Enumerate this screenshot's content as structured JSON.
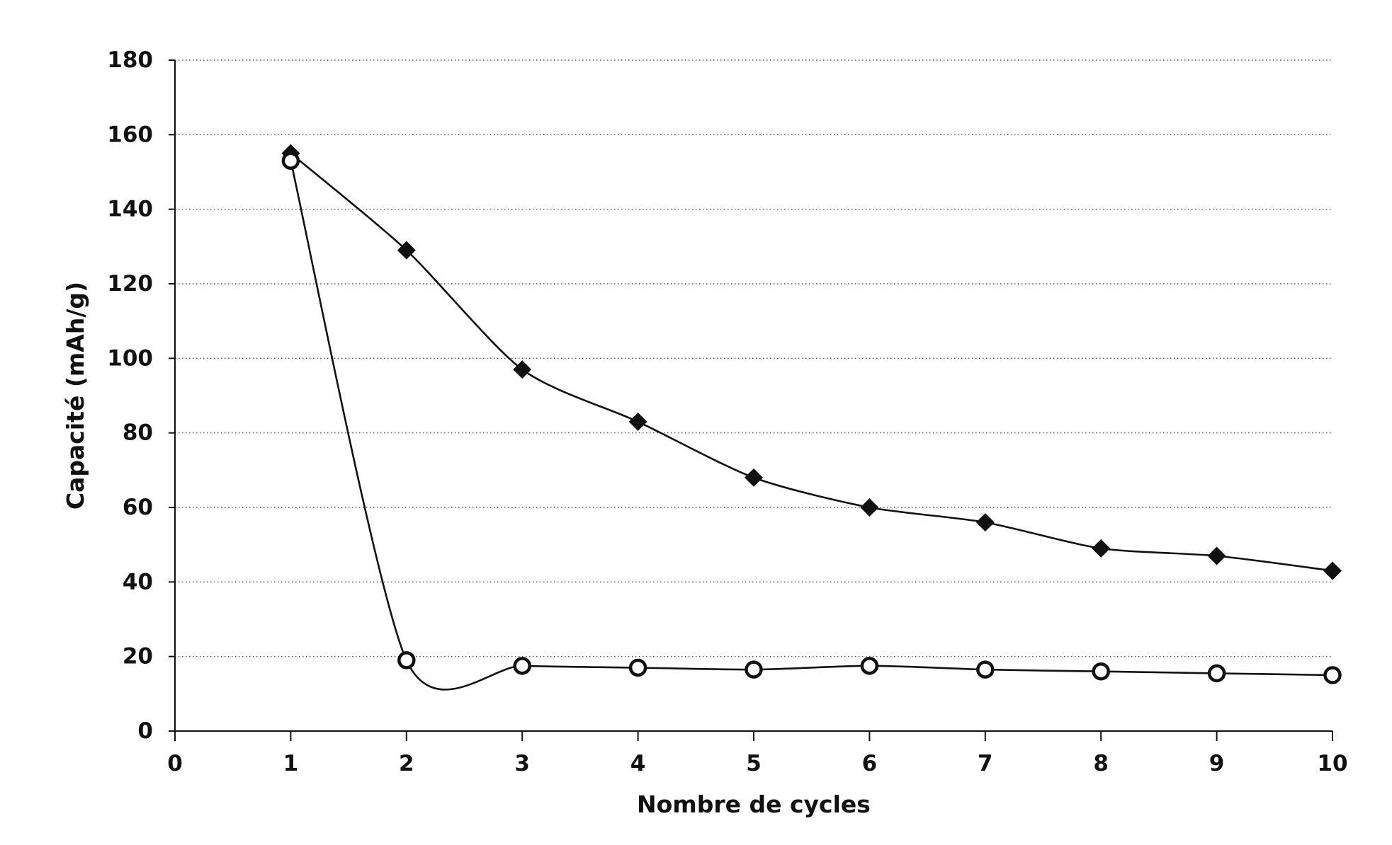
{
  "chart": {
    "background_color": "#ffffff",
    "ink_color": "#111111",
    "gridline_color": "#555555"
  },
  "chart_data": {
    "type": "line",
    "title": "",
    "xlabel": "Nombre de cycles",
    "ylabel": "Capacité (mAh/g)",
    "x": [
      1,
      2,
      3,
      4,
      5,
      6,
      7,
      8,
      9,
      10
    ],
    "series": [
      {
        "name": "serie-losanges-pleins",
        "marker": "filled-diamond",
        "color": "#111111",
        "values": [
          155,
          129,
          97,
          83,
          68,
          60,
          56,
          49,
          47,
          43
        ]
      },
      {
        "name": "serie-cercles-ouverts",
        "marker": "open-circle",
        "color": "#111111",
        "values": [
          153,
          19,
          17.5,
          17,
          16.5,
          17.5,
          16.5,
          16,
          15.5,
          15
        ]
      }
    ],
    "xlim": [
      0,
      10
    ],
    "ylim": [
      0,
      180
    ],
    "xticks": [
      0,
      1,
      2,
      3,
      4,
      5,
      6,
      7,
      8,
      9,
      10
    ],
    "yticks": [
      0,
      20,
      40,
      60,
      80,
      100,
      120,
      140,
      160,
      180
    ],
    "grid": true,
    "grid_style": "dotted-horizontal",
    "legend": false,
    "smooth_lines": true
  }
}
